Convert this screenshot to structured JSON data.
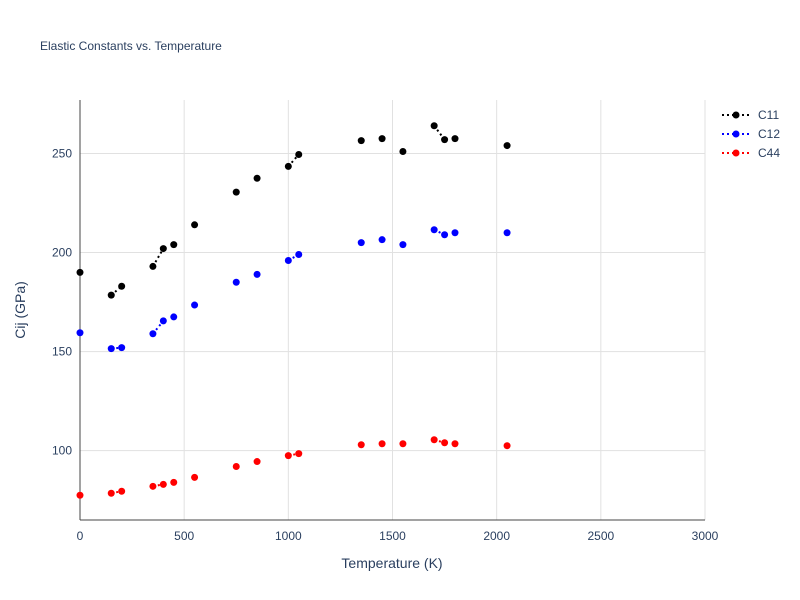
{
  "chart_data": {
    "type": "scatter",
    "title": "Elastic Constants vs. Temperature",
    "xlabel": "Temperature (K)",
    "ylabel": "Cij (GPa)",
    "xlim": [
      0,
      3000
    ],
    "ylim": [
      65,
      277
    ],
    "xticks": [
      0,
      500,
      1000,
      1500,
      2000,
      2500,
      3000
    ],
    "yticks": [
      100,
      150,
      200,
      250
    ],
    "grid": true,
    "legend_position": "top-right",
    "series": [
      {
        "name": "C11",
        "color": "#000000",
        "points": [
          [
            0,
            190
          ],
          [
            150,
            178.5
          ],
          [
            200,
            183
          ],
          [
            350,
            193
          ],
          [
            400,
            202
          ],
          [
            450,
            204
          ],
          [
            550,
            214
          ],
          [
            750,
            230.5
          ],
          [
            850,
            237.5
          ],
          [
            1000,
            243.5
          ],
          [
            1050,
            249.5
          ],
          [
            1350,
            256.5
          ],
          [
            1450,
            257.5
          ],
          [
            1550,
            251
          ],
          [
            1700,
            264
          ],
          [
            1750,
            257
          ],
          [
            1800,
            257.5
          ],
          [
            2050,
            254
          ]
        ],
        "dotted_segments": [
          [
            1,
            2
          ],
          [
            3,
            4
          ],
          [
            9,
            10
          ],
          [
            14,
            15
          ]
        ]
      },
      {
        "name": "C12",
        "color": "#0000ff",
        "points": [
          [
            0,
            159.5
          ],
          [
            150,
            151.5
          ],
          [
            200,
            152
          ],
          [
            350,
            159
          ],
          [
            400,
            165.5
          ],
          [
            450,
            167.5
          ],
          [
            550,
            173.5
          ],
          [
            750,
            185
          ],
          [
            850,
            189
          ],
          [
            1000,
            196
          ],
          [
            1050,
            199
          ],
          [
            1350,
            205
          ],
          [
            1450,
            206.5
          ],
          [
            1550,
            204
          ],
          [
            1700,
            211.5
          ],
          [
            1750,
            209
          ],
          [
            1800,
            210
          ],
          [
            2050,
            210
          ]
        ],
        "dotted_segments": [
          [
            1,
            2
          ],
          [
            3,
            4
          ],
          [
            9,
            10
          ],
          [
            14,
            15
          ]
        ]
      },
      {
        "name": "C44",
        "color": "#ff0000",
        "points": [
          [
            0,
            77.5
          ],
          [
            150,
            78.5
          ],
          [
            200,
            79.5
          ],
          [
            350,
            82
          ],
          [
            400,
            83
          ],
          [
            450,
            84
          ],
          [
            550,
            86.5
          ],
          [
            750,
            92
          ],
          [
            850,
            94.5
          ],
          [
            1000,
            97.5
          ],
          [
            1050,
            98.5
          ],
          [
            1350,
            103
          ],
          [
            1450,
            103.5
          ],
          [
            1550,
            103.5
          ],
          [
            1700,
            105.5
          ],
          [
            1750,
            104
          ],
          [
            1800,
            103.5
          ],
          [
            2050,
            102.5
          ]
        ],
        "dotted_segments": [
          [
            1,
            2
          ],
          [
            3,
            4
          ],
          [
            9,
            10
          ],
          [
            14,
            15
          ]
        ]
      }
    ]
  }
}
